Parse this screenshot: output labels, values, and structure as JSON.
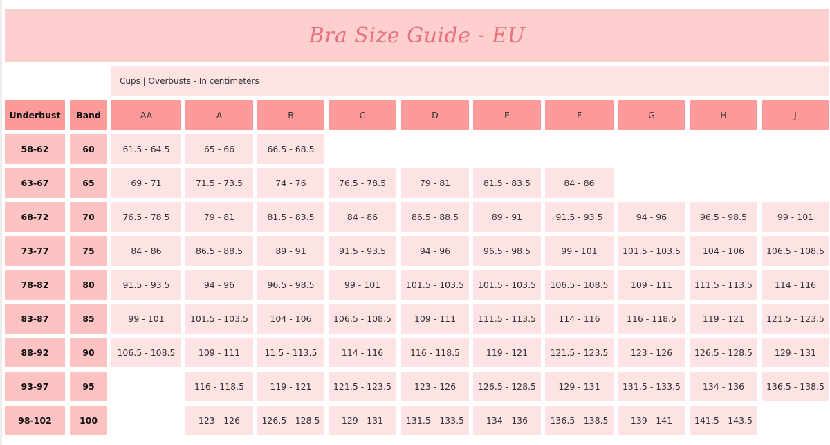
{
  "title": "Bra Size Guide - EU",
  "subtitle": "Cups | Overbusts - In centimeters",
  "colors": {
    "banner": "#fdcfcf",
    "title": "#e8707a",
    "header": "#fc9a9a",
    "row_label": "#fdc3c3",
    "cell": "#fde3e3"
  },
  "headers": {
    "underbust": "Underbust",
    "band": "Band",
    "cups": [
      "AA",
      "A",
      "B",
      "C",
      "D",
      "E",
      "F",
      "G",
      "H",
      "J"
    ]
  },
  "rows": [
    {
      "underbust": "58-62",
      "band": "60",
      "values": [
        "61.5 - 64.5",
        "65 - 66",
        "66.5 - 68.5",
        "",
        "",
        "",
        "",
        "",
        "",
        ""
      ]
    },
    {
      "underbust": "63-67",
      "band": "65",
      "values": [
        "69 - 71",
        "71.5 - 73.5",
        "74 - 76",
        "76.5 - 78.5",
        "79 - 81",
        "81.5 - 83.5",
        "84 - 86",
        "",
        "",
        ""
      ]
    },
    {
      "underbust": "68-72",
      "band": "70",
      "values": [
        "76.5 - 78.5",
        "79 - 81",
        "81.5 - 83.5",
        "84 - 86",
        "86.5 - 88.5",
        "89 - 91",
        "91.5 - 93.5",
        "94 - 96",
        "96.5 - 98.5",
        "99 - 101"
      ]
    },
    {
      "underbust": "73-77",
      "band": "75",
      "values": [
        "84 - 86",
        "86.5 - 88.5",
        "89 - 91",
        "91.5 - 93.5",
        "94 - 96",
        "96.5 - 98.5",
        "99 - 101",
        "101.5 - 103.5",
        "104 - 106",
        "106.5 - 108.5"
      ]
    },
    {
      "underbust": "78-82",
      "band": "80",
      "values": [
        "91.5 - 93.5",
        "94 - 96",
        "96.5 - 98.5",
        "99 - 101",
        "101.5 - 103.5",
        "101.5 - 103.5",
        "106.5 - 108.5",
        "109 - 111",
        "111.5 - 113.5",
        "114 - 116"
      ]
    },
    {
      "underbust": "83-87",
      "band": "85",
      "values": [
        "99 - 101",
        "101.5 - 103.5",
        "104 - 106",
        "106.5 - 108.5",
        "109 - 111",
        "111.5 - 113.5",
        "114 - 116",
        "116 - 118.5",
        "119 - 121",
        "121.5 - 123.5"
      ]
    },
    {
      "underbust": "88-92",
      "band": "90",
      "values": [
        "106.5 - 108.5",
        "109 - 111",
        "11.5 - 113.5",
        "114 - 116",
        "116 - 118.5",
        "119 - 121",
        "121.5 - 123.5",
        "123 - 126",
        "126.5 - 128.5",
        "129 - 131"
      ]
    },
    {
      "underbust": "93-97",
      "band": "95",
      "values": [
        "",
        "116 - 118.5",
        "119 - 121",
        "121.5 - 123.5",
        "123 - 126",
        "126.5 - 128.5",
        "129 - 131",
        "131.5 - 133.5",
        "134 - 136",
        "136.5 - 138.5"
      ]
    },
    {
      "underbust": "98-102",
      "band": "100",
      "values": [
        "",
        "123 - 126",
        "126.5 - 128.5",
        "129 - 131",
        "131.5 - 133.5",
        "134 - 136",
        "136.5 - 138.5",
        "139 - 141",
        "141.5 - 143.5",
        ""
      ]
    }
  ]
}
